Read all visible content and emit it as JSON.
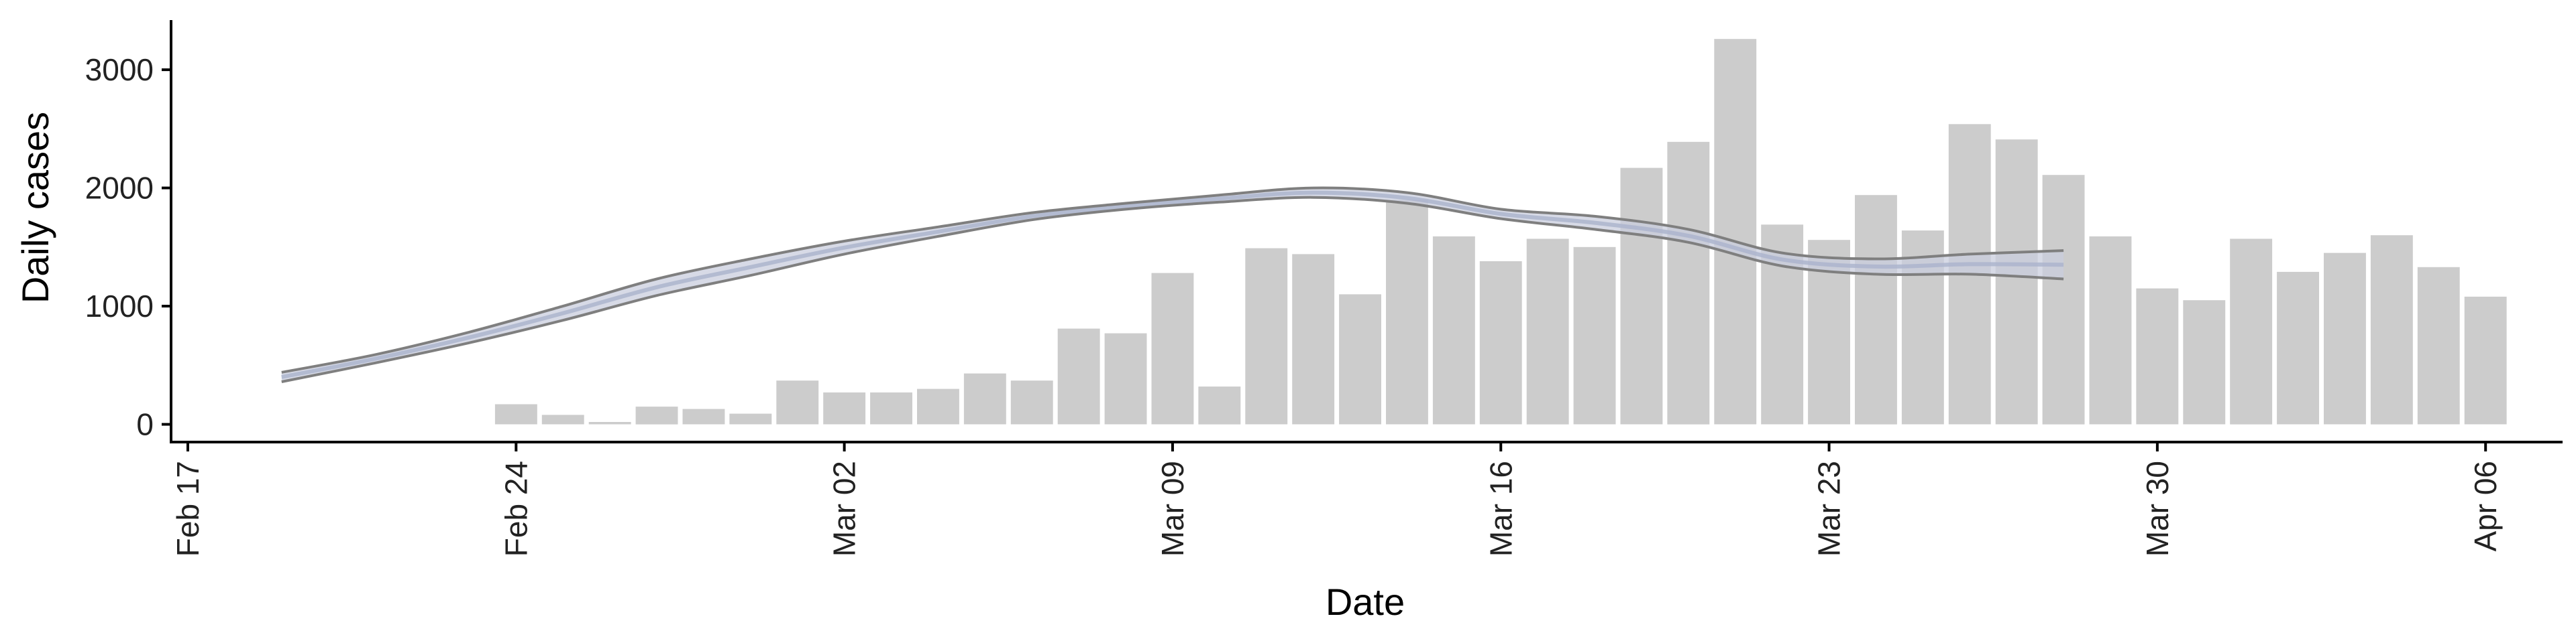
{
  "chart_data": {
    "type": "bar",
    "title": "",
    "xlabel": "Date",
    "ylabel": "Daily cases",
    "x_ticks": [
      "Feb 17",
      "Feb 24",
      "Mar 02",
      "Mar 09",
      "Mar 16",
      "Mar 23",
      "Mar 30",
      "Apr 06"
    ],
    "x_tick_dates": [
      "2020-02-17",
      "2020-02-24",
      "2020-03-02",
      "2020-03-09",
      "2020-03-16",
      "2020-03-23",
      "2020-03-30",
      "2020-04-06"
    ],
    "y_ticks": [
      "0",
      "1000",
      "2000",
      "3000"
    ],
    "xlim": [
      "2020-02-17",
      "2020-04-08"
    ],
    "ylim": [
      -150,
      3420
    ],
    "grid": false,
    "legend": "none",
    "colors": {
      "bars": "#cccccc",
      "band_outline": "#7f7f7f",
      "band_fill": "#c9cede",
      "band_center": "#aab3cc",
      "axis": "#000000"
    },
    "series": [
      {
        "type": "bar",
        "x": [
          "2020-02-24",
          "2020-02-25",
          "2020-02-26",
          "2020-02-27",
          "2020-02-28",
          "2020-02-29",
          "2020-03-01",
          "2020-03-02",
          "2020-03-03",
          "2020-03-04",
          "2020-03-05",
          "2020-03-06",
          "2020-03-07",
          "2020-03-08",
          "2020-03-09",
          "2020-03-10",
          "2020-03-11",
          "2020-03-12",
          "2020-03-13",
          "2020-03-14",
          "2020-03-15",
          "2020-03-16",
          "2020-03-17",
          "2020-03-18",
          "2020-03-19",
          "2020-03-20",
          "2020-03-21",
          "2020-03-22",
          "2020-03-23",
          "2020-03-24",
          "2020-03-25",
          "2020-03-26",
          "2020-03-27",
          "2020-03-28",
          "2020-03-29",
          "2020-03-30",
          "2020-03-31",
          "2020-04-01",
          "2020-04-02",
          "2020-04-03",
          "2020-04-04",
          "2020-04-05",
          "2020-04-06"
        ],
        "values": [
          170,
          80,
          20,
          150,
          130,
          90,
          370,
          270,
          270,
          300,
          430,
          370,
          810,
          770,
          1280,
          320,
          1490,
          1440,
          1100,
          1900,
          1590,
          1380,
          1570,
          1500,
          2170,
          2390,
          3260,
          1690,
          1560,
          1940,
          1640,
          2540,
          2410,
          2110,
          1590,
          1150,
          1050,
          1570,
          1290,
          1450,
          1600,
          1330,
          1080
        ]
      },
      {
        "type": "band",
        "x": [
          "2020-02-19",
          "2020-02-21",
          "2020-02-23",
          "2020-02-25",
          "2020-02-27",
          "2020-02-29",
          "2020-03-02",
          "2020-03-04",
          "2020-03-06",
          "2020-03-08",
          "2020-03-10",
          "2020-03-12",
          "2020-03-14",
          "2020-03-16",
          "2020-03-18",
          "2020-03-20",
          "2020-03-22",
          "2020-03-24",
          "2020-03-26",
          "2020-03-28"
        ],
        "lower": [
          360,
          520,
          690,
          880,
          1090,
          1260,
          1440,
          1590,
          1730,
          1820,
          1880,
          1920,
          1870,
          1740,
          1650,
          1540,
          1340,
          1270,
          1270,
          1230
        ],
        "upper": [
          440,
          590,
          780,
          1000,
          1230,
          1400,
          1550,
          1670,
          1790,
          1870,
          1940,
          2000,
          1960,
          1820,
          1760,
          1650,
          1450,
          1400,
          1440,
          1470
        ]
      }
    ]
  }
}
